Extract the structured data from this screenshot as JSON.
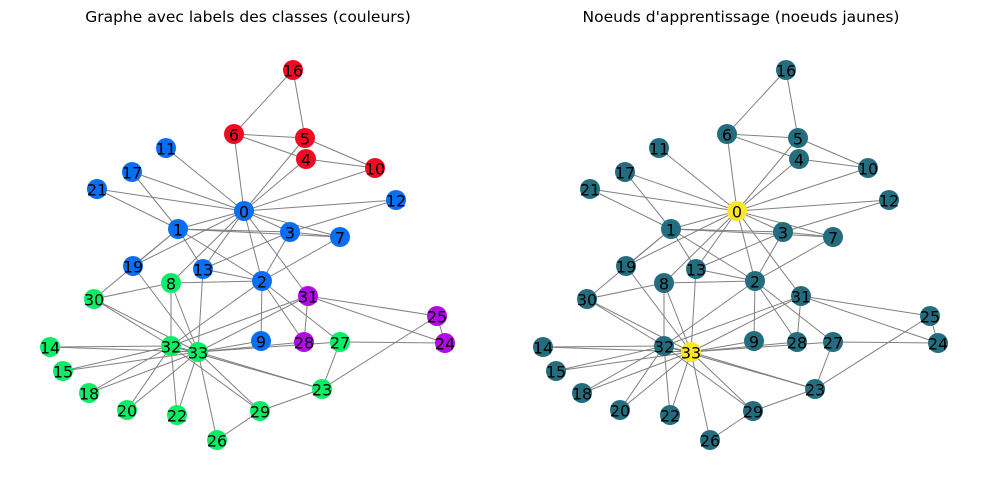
{
  "panels": [
    {
      "id": "left",
      "title": "Graphe avec labels des classes (couleurs)"
    },
    {
      "id": "right",
      "title": "Noeuds d'apprentissage (noeuds jaunes)"
    }
  ],
  "colors": {
    "red": "#f20a22",
    "blue": "#0a6ef2",
    "green": "#0aee66",
    "purple": "#b00ae6",
    "teal": "#246d7e",
    "yellow": "#fde725",
    "edge": "#808080"
  },
  "nodes": [
    {
      "id": "0",
      "left_class": "blue",
      "right_class": "yellow"
    },
    {
      "id": "1",
      "left_class": "blue",
      "right_class": "teal"
    },
    {
      "id": "2",
      "left_class": "blue",
      "right_class": "teal"
    },
    {
      "id": "3",
      "left_class": "blue",
      "right_class": "teal"
    },
    {
      "id": "4",
      "left_class": "red",
      "right_class": "teal"
    },
    {
      "id": "5",
      "left_class": "red",
      "right_class": "teal"
    },
    {
      "id": "6",
      "left_class": "red",
      "right_class": "teal"
    },
    {
      "id": "7",
      "left_class": "blue",
      "right_class": "teal"
    },
    {
      "id": "8",
      "left_class": "green",
      "right_class": "teal"
    },
    {
      "id": "9",
      "left_class": "blue",
      "right_class": "teal"
    },
    {
      "id": "10",
      "left_class": "red",
      "right_class": "teal"
    },
    {
      "id": "11",
      "left_class": "blue",
      "right_class": "teal"
    },
    {
      "id": "12",
      "left_class": "blue",
      "right_class": "teal"
    },
    {
      "id": "13",
      "left_class": "blue",
      "right_class": "teal"
    },
    {
      "id": "14",
      "left_class": "green",
      "right_class": "teal"
    },
    {
      "id": "15",
      "left_class": "green",
      "right_class": "teal"
    },
    {
      "id": "16",
      "left_class": "red",
      "right_class": "teal"
    },
    {
      "id": "17",
      "left_class": "blue",
      "right_class": "teal"
    },
    {
      "id": "18",
      "left_class": "green",
      "right_class": "teal"
    },
    {
      "id": "19",
      "left_class": "blue",
      "right_class": "teal"
    },
    {
      "id": "20",
      "left_class": "green",
      "right_class": "teal"
    },
    {
      "id": "21",
      "left_class": "blue",
      "right_class": "teal"
    },
    {
      "id": "22",
      "left_class": "green",
      "right_class": "teal"
    },
    {
      "id": "23",
      "left_class": "green",
      "right_class": "teal"
    },
    {
      "id": "24",
      "left_class": "purple",
      "right_class": "teal"
    },
    {
      "id": "25",
      "left_class": "purple",
      "right_class": "teal"
    },
    {
      "id": "26",
      "left_class": "green",
      "right_class": "teal"
    },
    {
      "id": "27",
      "left_class": "green",
      "right_class": "teal"
    },
    {
      "id": "28",
      "left_class": "purple",
      "right_class": "teal"
    },
    {
      "id": "29",
      "left_class": "green",
      "right_class": "teal"
    },
    {
      "id": "30",
      "left_class": "green",
      "right_class": "teal"
    },
    {
      "id": "31",
      "left_class": "purple",
      "right_class": "teal"
    },
    {
      "id": "32",
      "left_class": "green",
      "right_class": "teal"
    },
    {
      "id": "33",
      "left_class": "green",
      "right_class": "yellow"
    }
  ],
  "edges": [
    [
      "0",
      "1"
    ],
    [
      "0",
      "2"
    ],
    [
      "0",
      "3"
    ],
    [
      "0",
      "4"
    ],
    [
      "0",
      "5"
    ],
    [
      "0",
      "6"
    ],
    [
      "0",
      "7"
    ],
    [
      "0",
      "8"
    ],
    [
      "0",
      "10"
    ],
    [
      "0",
      "11"
    ],
    [
      "0",
      "12"
    ],
    [
      "0",
      "13"
    ],
    [
      "0",
      "17"
    ],
    [
      "0",
      "19"
    ],
    [
      "0",
      "21"
    ],
    [
      "0",
      "31"
    ],
    [
      "1",
      "2"
    ],
    [
      "1",
      "3"
    ],
    [
      "1",
      "7"
    ],
    [
      "1",
      "13"
    ],
    [
      "1",
      "17"
    ],
    [
      "1",
      "19"
    ],
    [
      "1",
      "21"
    ],
    [
      "1",
      "30"
    ],
    [
      "2",
      "3"
    ],
    [
      "2",
      "7"
    ],
    [
      "2",
      "8"
    ],
    [
      "2",
      "9"
    ],
    [
      "2",
      "13"
    ],
    [
      "2",
      "27"
    ],
    [
      "2",
      "28"
    ],
    [
      "2",
      "32"
    ],
    [
      "3",
      "7"
    ],
    [
      "3",
      "12"
    ],
    [
      "3",
      "13"
    ],
    [
      "4",
      "6"
    ],
    [
      "4",
      "10"
    ],
    [
      "5",
      "6"
    ],
    [
      "5",
      "10"
    ],
    [
      "5",
      "16"
    ],
    [
      "6",
      "16"
    ],
    [
      "8",
      "30"
    ],
    [
      "8",
      "32"
    ],
    [
      "8",
      "33"
    ],
    [
      "9",
      "33"
    ],
    [
      "13",
      "33"
    ],
    [
      "14",
      "32"
    ],
    [
      "14",
      "33"
    ],
    [
      "15",
      "32"
    ],
    [
      "15",
      "33"
    ],
    [
      "18",
      "32"
    ],
    [
      "18",
      "33"
    ],
    [
      "19",
      "33"
    ],
    [
      "20",
      "32"
    ],
    [
      "20",
      "33"
    ],
    [
      "22",
      "32"
    ],
    [
      "22",
      "33"
    ],
    [
      "23",
      "25"
    ],
    [
      "23",
      "27"
    ],
    [
      "23",
      "29"
    ],
    [
      "23",
      "32"
    ],
    [
      "23",
      "33"
    ],
    [
      "24",
      "25"
    ],
    [
      "24",
      "27"
    ],
    [
      "24",
      "31"
    ],
    [
      "25",
      "31"
    ],
    [
      "26",
      "29"
    ],
    [
      "26",
      "33"
    ],
    [
      "27",
      "33"
    ],
    [
      "28",
      "31"
    ],
    [
      "28",
      "33"
    ],
    [
      "29",
      "32"
    ],
    [
      "29",
      "33"
    ],
    [
      "30",
      "32"
    ],
    [
      "30",
      "33"
    ],
    [
      "31",
      "32"
    ],
    [
      "31",
      "33"
    ],
    [
      "32",
      "33"
    ]
  ]
}
